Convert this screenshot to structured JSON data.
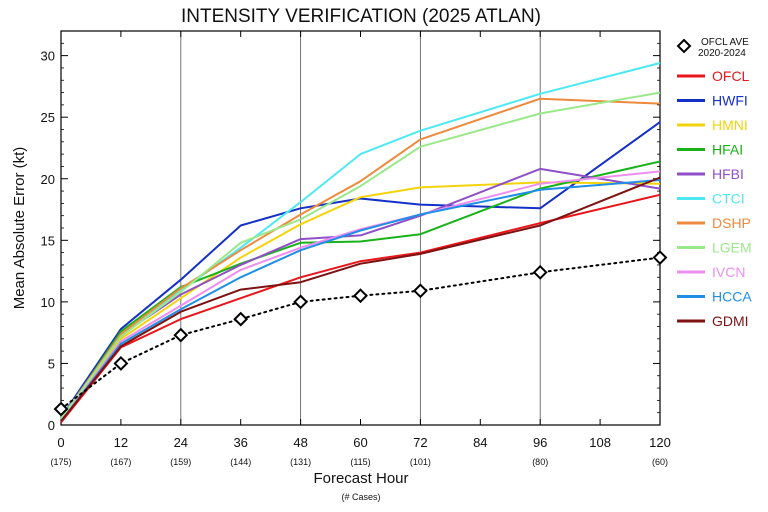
{
  "chart_data": {
    "type": "line",
    "title": "INTENSITY VERIFICATION (2025 ATLAN)",
    "xlabel": "Forecast Hour",
    "xlabel_sub": "(# Cases)",
    "ylabel": "Mean Absolute Error (kt)",
    "xlim": [
      0,
      120
    ],
    "ylim": [
      0,
      32
    ],
    "x_ticks": [
      "0",
      "12",
      "24",
      "36",
      "48",
      "60",
      "72",
      "84",
      "96",
      "108",
      "120"
    ],
    "y_ticks": [
      "0",
      "5",
      "10",
      "15",
      "20",
      "25",
      "30"
    ],
    "gridlines_x": [
      24,
      48,
      72,
      96
    ],
    "cases": [
      {
        "x": 0,
        "label": "(175)"
      },
      {
        "x": 12,
        "label": "(167)"
      },
      {
        "x": 24,
        "label": "(159)"
      },
      {
        "x": 36,
        "label": "(144)"
      },
      {
        "x": 48,
        "label": "(131)"
      },
      {
        "x": 60,
        "label": "(115)"
      },
      {
        "x": 72,
        "label": "(101)"
      },
      {
        "x": 96,
        "label": "(80)"
      },
      {
        "x": 120,
        "label": "(60)"
      }
    ],
    "x": [
      0,
      12,
      24,
      36,
      48,
      60,
      72,
      96,
      120
    ],
    "reference": {
      "name_line1": "OFCL AVE",
      "name_line2": "2020-2024",
      "color": "#000000",
      "values": [
        1.3,
        5.0,
        7.3,
        8.6,
        10.0,
        10.5,
        10.9,
        12.4,
        13.6
      ]
    },
    "series": [
      {
        "name": "OFCL",
        "color": "#e8161b",
        "values": [
          0.2,
          6.3,
          8.6,
          10.3,
          12.0,
          13.3,
          14.0,
          16.4,
          18.7
        ]
      },
      {
        "name": "HWFI",
        "color": "#1530c7",
        "values": [
          0.6,
          7.8,
          11.8,
          16.2,
          17.6,
          18.4,
          17.9,
          17.6,
          24.6
        ]
      },
      {
        "name": "HMNI",
        "color": "#f3d40c",
        "values": [
          0.4,
          7.0,
          10.3,
          13.6,
          16.3,
          18.5,
          19.3,
          19.7,
          19.6
        ]
      },
      {
        "name": "HFAI",
        "color": "#19b219",
        "values": [
          0.4,
          7.6,
          11.2,
          13.1,
          14.8,
          14.9,
          15.5,
          19.2,
          21.4
        ]
      },
      {
        "name": "HFBI",
        "color": "#8f4fc7",
        "values": [
          0.5,
          7.3,
          10.6,
          13.0,
          15.1,
          15.4,
          17.0,
          20.8,
          19.2
        ]
      },
      {
        "name": "CTCI",
        "color": "#4de9f2",
        "values": [
          0.6,
          7.2,
          10.9,
          14.4,
          18.1,
          22.0,
          23.9,
          26.9,
          29.4
        ]
      },
      {
        "name": "DSHP",
        "color": "#ee8a3e",
        "values": [
          0.5,
          7.4,
          11.1,
          14.2,
          17.1,
          19.8,
          23.2,
          26.5,
          26.1
        ]
      },
      {
        "name": "LGEM",
        "color": "#9ae88a",
        "values": [
          0.5,
          7.2,
          10.8,
          14.8,
          16.7,
          19.4,
          22.6,
          25.3,
          27.0
        ]
      },
      {
        "name": "IVCN",
        "color": "#ee8ef0",
        "values": [
          0.3,
          6.8,
          9.7,
          12.6,
          14.4,
          15.9,
          17.1,
          19.6,
          20.6
        ]
      },
      {
        "name": "HCCA",
        "color": "#1f8fe6",
        "values": [
          0.3,
          6.6,
          9.4,
          12.0,
          14.2,
          15.8,
          17.1,
          19.1,
          19.9
        ]
      },
      {
        "name": "GDMI",
        "color": "#7c1212",
        "values": [
          0.3,
          6.4,
          9.2,
          11.0,
          11.6,
          13.1,
          13.9,
          16.2,
          20.1
        ]
      }
    ],
    "legend_placement": "right",
    "grid": "vertical-only"
  }
}
